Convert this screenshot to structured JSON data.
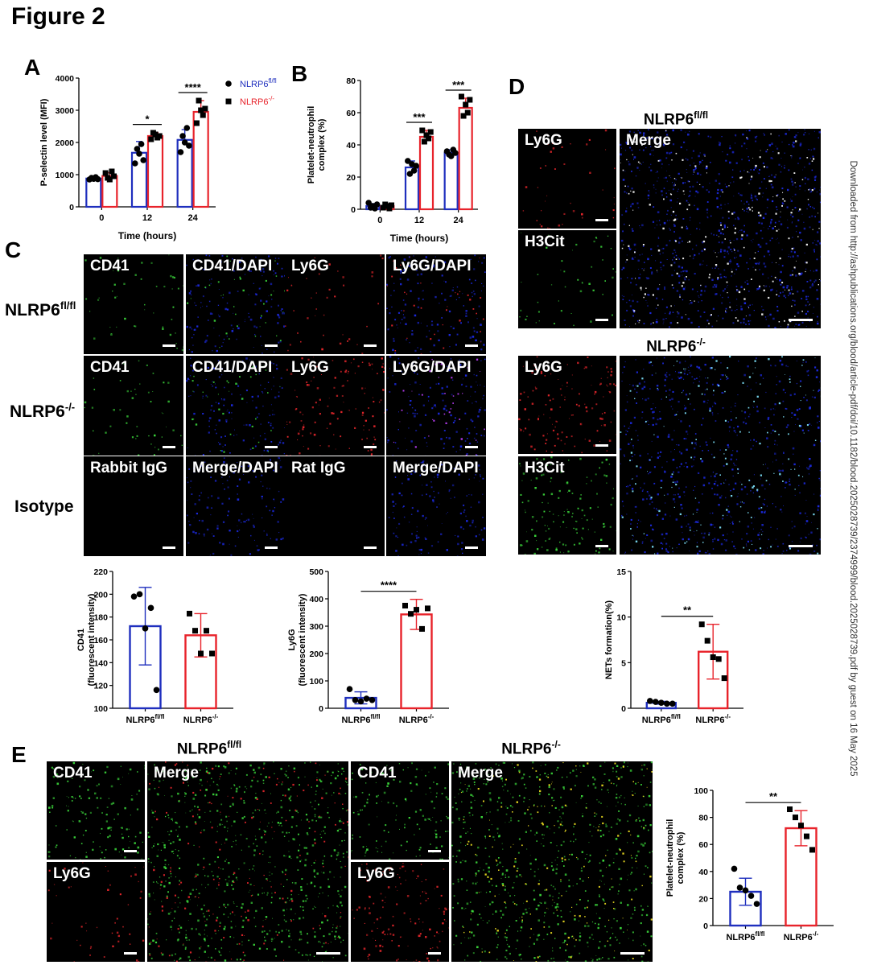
{
  "figure_title": "Figure 2",
  "panel_letters": [
    "A",
    "B",
    "C",
    "D",
    "E"
  ],
  "side_note": "Downloaded from http://ashpublications.org/blood/article-pdf/doi/10.1182/blood.2025028739/2374999/blood.2025028739.pdf by guest on 16 May 2025",
  "colors": {
    "flfl": "#1f2fbe",
    "ko": "#e8232b",
    "green": "#3ad33a",
    "red": "#e4262b",
    "blue": "#1c2ae0"
  },
  "labels": {
    "flfl_base": "NLRP6",
    "flfl_sup": "fl/fl",
    "ko_base": "NLRP6",
    "ko_sup": "-/-",
    "isotype": "Isotype"
  },
  "panel_c": {
    "row1": [
      "CD41",
      "CD41/DAPI",
      "Ly6G",
      "Ly6G/DAPI"
    ],
    "row2": [
      "CD41",
      "CD41/DAPI",
      "Ly6G",
      "Ly6G/DAPI"
    ],
    "row3": [
      "Rabbit IgG",
      "Merge/DAPI",
      "Rat IgG",
      "Merge/DAPI"
    ]
  },
  "panel_d": {
    "small": [
      "Ly6G",
      "H3Cit"
    ],
    "merge": "Merge"
  },
  "panel_e": {
    "small": [
      "CD41",
      "Ly6G"
    ],
    "merge": "Merge"
  },
  "chart_data": [
    {
      "id": "A",
      "type": "bar",
      "xlabel": "Time (hours)",
      "ylabel": "P-selectin level (MFI)",
      "categories": [
        "0",
        "12",
        "24"
      ],
      "ylim": [
        0,
        4000
      ],
      "yticks": [
        0,
        1000,
        2000,
        3000,
        4000
      ],
      "legend": [
        {
          "base": "NLRP6",
          "sup": "fl/fl"
        },
        {
          "base": "NLRP6",
          "sup": "-/-"
        }
      ],
      "legend_position": "top-right",
      "series": [
        {
          "values": [
            880,
            1680,
            2080
          ],
          "sd": [
            50,
            350,
            320
          ],
          "points": [
            [
              850,
              900,
              870,
              920,
              860
            ],
            [
              1350,
              1800,
              1650,
              1950,
              1450
            ],
            [
              1700,
              2200,
              2000,
              2450,
              1900
            ]
          ]
        },
        {
          "values": [
            960,
            2200,
            2950
          ],
          "sd": [
            100,
            110,
            350
          ],
          "points": [
            [
              1050,
              900,
              850,
              1100,
              950
            ],
            [
              2100,
              2300,
              2250,
              2150,
              2200
            ],
            [
              2600,
              3300,
              3000,
              2850,
              3050
            ]
          ]
        }
      ],
      "significance": [
        {
          "category": 1,
          "label": "*"
        },
        {
          "category": 2,
          "label": "****"
        }
      ]
    },
    {
      "id": "B",
      "type": "bar",
      "xlabel": "Time (hours)",
      "ylabel": "Platelet-neutrophil complex (%)",
      "ylabel_lines": [
        "Platelet-neutrophil",
        "complex (%)"
      ],
      "categories": [
        "0",
        "12",
        "24"
      ],
      "ylim": [
        0,
        80
      ],
      "yticks": [
        0,
        20,
        40,
        60,
        80
      ],
      "series": [
        {
          "values": [
            2,
            26,
            35
          ],
          "sd": [
            1.5,
            4,
            2
          ],
          "points": [
            [
              4,
              1,
              2,
              0.5,
              3
            ],
            [
              30,
              22,
              28,
              24,
              27
            ],
            [
              36,
              34,
              33,
              37,
              35
            ]
          ]
        },
        {
          "values": [
            2,
            45,
            63
          ],
          "sd": [
            1.5,
            4,
            6
          ],
          "points": [
            [
              1,
              3,
              2,
              0.5,
              2.5
            ],
            [
              49,
              42,
              46,
              44,
              48
            ],
            [
              70,
              58,
              65,
              60,
              68
            ]
          ]
        }
      ],
      "significance": [
        {
          "category": 1,
          "label": "***"
        },
        {
          "category": 2,
          "label": "***"
        }
      ]
    },
    {
      "id": "C1",
      "type": "bar",
      "ylabel_lines": [
        "CD41",
        "(fluorescent intensity)"
      ],
      "categories": [
        {
          "base": "NLRP6",
          "sup": "fl/fl"
        },
        {
          "base": "NLRP6",
          "sup": "-/-"
        }
      ],
      "ylim": [
        100,
        220
      ],
      "yticks": [
        100,
        120,
        140,
        160,
        180,
        200,
        220
      ],
      "values": [
        172,
        164
      ],
      "sd": [
        34,
        19
      ],
      "points": [
        [
          198,
          200,
          170,
          188,
          116
        ],
        [
          183,
          168,
          148,
          168,
          148
        ]
      ]
    },
    {
      "id": "C2",
      "type": "bar",
      "ylabel_lines": [
        "Ly6G",
        "(fluorescent intensity)"
      ],
      "categories": [
        {
          "base": "NLRP6",
          "sup": "fl/fl"
        },
        {
          "base": "NLRP6",
          "sup": "-/-"
        }
      ],
      "ylim": [
        0,
        500
      ],
      "yticks": [
        0,
        100,
        200,
        300,
        400,
        500
      ],
      "values": [
        38,
        343
      ],
      "sd": [
        22,
        55
      ],
      "points": [
        [
          70,
          30,
          25,
          35,
          30
        ],
        [
          375,
          345,
          360,
          290,
          365
        ]
      ],
      "significance": "****"
    },
    {
      "id": "D1",
      "type": "bar",
      "ylabel": "NETs formation(%)",
      "categories": [
        {
          "base": "NLRP6",
          "sup": "fl/fl"
        },
        {
          "base": "NLRP6",
          "sup": "-/-"
        }
      ],
      "ylim": [
        0,
        15
      ],
      "yticks": [
        0,
        5,
        10,
        15
      ],
      "values": [
        0.6,
        6.2
      ],
      "sd": [
        0.15,
        3.0
      ],
      "points": [
        [
          0.8,
          0.7,
          0.6,
          0.5,
          0.5
        ],
        [
          9.2,
          7.4,
          5.6,
          5.4,
          3.3
        ]
      ],
      "significance": "**"
    },
    {
      "id": "E1",
      "type": "bar",
      "ylabel_lines": [
        "Platelet-neutrophil",
        "complex (%)"
      ],
      "categories": [
        {
          "base": "NLRP6",
          "sup": "fl/fl"
        },
        {
          "base": "NLRP6",
          "sup": "-/-"
        }
      ],
      "ylim": [
        0,
        100
      ],
      "yticks": [
        0,
        20,
        40,
        60,
        80,
        100
      ],
      "values": [
        25,
        72
      ],
      "sd": [
        10,
        13
      ],
      "points": [
        [
          42,
          28,
          26,
          22,
          16
        ],
        [
          86,
          80,
          74,
          66,
          56
        ]
      ],
      "significance": "**"
    }
  ]
}
